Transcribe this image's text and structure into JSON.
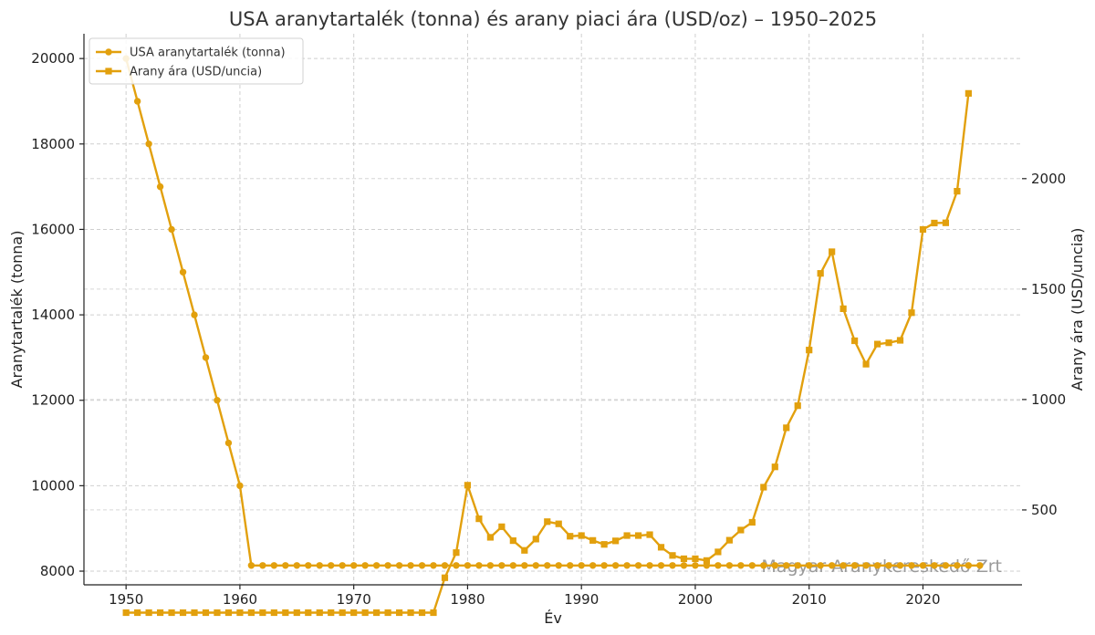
{
  "chart_data": {
    "type": "line",
    "title": "USA aranytartalék (tonna) és arany piaci ára (USD/oz) – 1950–2025",
    "xlabel": "Év",
    "ylabel": "Aranytartalék (tonna)",
    "y2label": "Arany ára (USD/uncia)",
    "xlim": [
      1946.3,
      2028.7
    ],
    "ylim": [
      7680,
      20580
    ],
    "y2lim": [
      161,
      2656
    ],
    "xticks": [
      1950,
      1960,
      1970,
      1980,
      1990,
      2000,
      2010,
      2020
    ],
    "yticks": [
      8000,
      10000,
      12000,
      14000,
      16000,
      18000,
      20000
    ],
    "y2ticks": [
      500,
      1000,
      1500,
      2000
    ],
    "grid": true,
    "legend_position": "top-left",
    "color": "#E2A00D",
    "watermark": "Magyar Aranykereskedő Zrt",
    "series": [
      {
        "name": "USA aranytartalék (tonna)",
        "axis": "left",
        "marker": "circle",
        "x": [
          1950,
          1951,
          1952,
          1953,
          1954,
          1955,
          1956,
          1957,
          1958,
          1959,
          1960,
          1961,
          1962,
          1963,
          1964,
          1965,
          1966,
          1967,
          1968,
          1969,
          1970,
          1971,
          1972,
          1973,
          1974,
          1975,
          1976,
          1977,
          1978,
          1979,
          1980,
          1981,
          1982,
          1983,
          1984,
          1985,
          1986,
          1987,
          1988,
          1989,
          1990,
          1991,
          1992,
          1993,
          1994,
          1995,
          1996,
          1997,
          1998,
          1999,
          2000,
          2001,
          2002,
          2003,
          2004,
          2005,
          2006,
          2007,
          2008,
          2009,
          2010,
          2011,
          2012,
          2013,
          2014,
          2015,
          2016,
          2017,
          2018,
          2019,
          2020,
          2021,
          2022,
          2023,
          2024,
          2025
        ],
        "values": [
          20000,
          19000,
          18000,
          17000,
          16000,
          15000,
          14000,
          13000,
          12000,
          11000,
          10000,
          8133,
          8133,
          8133,
          8133,
          8133,
          8133,
          8133,
          8133,
          8133,
          8133,
          8133,
          8133,
          8133,
          8133,
          8133,
          8133,
          8133,
          8133,
          8133,
          8133,
          8133,
          8133,
          8133,
          8133,
          8133,
          8133,
          8133,
          8133,
          8133,
          8133,
          8133,
          8133,
          8133,
          8133,
          8133,
          8133,
          8133,
          8133,
          8133,
          8133,
          8133,
          8133,
          8133,
          8133,
          8133,
          8133,
          8133,
          8133,
          8133,
          8133,
          8133,
          8133,
          8133,
          8133,
          8133,
          8133,
          8133,
          8133,
          8133,
          8133,
          8133,
          8133,
          8133,
          8133,
          8133
        ]
      },
      {
        "name": "Arany ára (USD/uncia)",
        "axis": "right",
        "marker": "square",
        "x": [
          1950,
          1951,
          1952,
          1953,
          1954,
          1955,
          1956,
          1957,
          1958,
          1959,
          1960,
          1961,
          1962,
          1963,
          1964,
          1965,
          1966,
          1967,
          1968,
          1969,
          1970,
          1971,
          1972,
          1973,
          1974,
          1975,
          1976,
          1977,
          1978,
          1979,
          1980,
          1981,
          1982,
          1983,
          1984,
          1985,
          1986,
          1987,
          1988,
          1989,
          1990,
          1991,
          1992,
          1993,
          1994,
          1995,
          1996,
          1997,
          1998,
          1999,
          2000,
          2001,
          2002,
          2003,
          2004,
          2005,
          2006,
          2007,
          2008,
          2009,
          2010,
          2011,
          2012,
          2013,
          2014,
          2015,
          2016,
          2017,
          2018,
          2019,
          2020,
          2021,
          2022,
          2023,
          2024
        ],
        "values": [
          35,
          35,
          35,
          35,
          35,
          35,
          35,
          35,
          35,
          35,
          35,
          35,
          35,
          35,
          35,
          35,
          35,
          35,
          35,
          35,
          35,
          35,
          35,
          35,
          35,
          35,
          35,
          35,
          193,
          307,
          612,
          460,
          376,
          424,
          361,
          317,
          368,
          447,
          437,
          381,
          384,
          362,
          344,
          360,
          384,
          384,
          388,
          331,
          294,
          279,
          279,
          271,
          310,
          363,
          409,
          444,
          603,
          695,
          872,
          972,
          1224,
          1571,
          1669,
          1411,
          1266,
          1160,
          1251,
          1257,
          1268,
          1393,
          1770,
          1799,
          1800,
          1943,
          2386
        ]
      }
    ]
  }
}
